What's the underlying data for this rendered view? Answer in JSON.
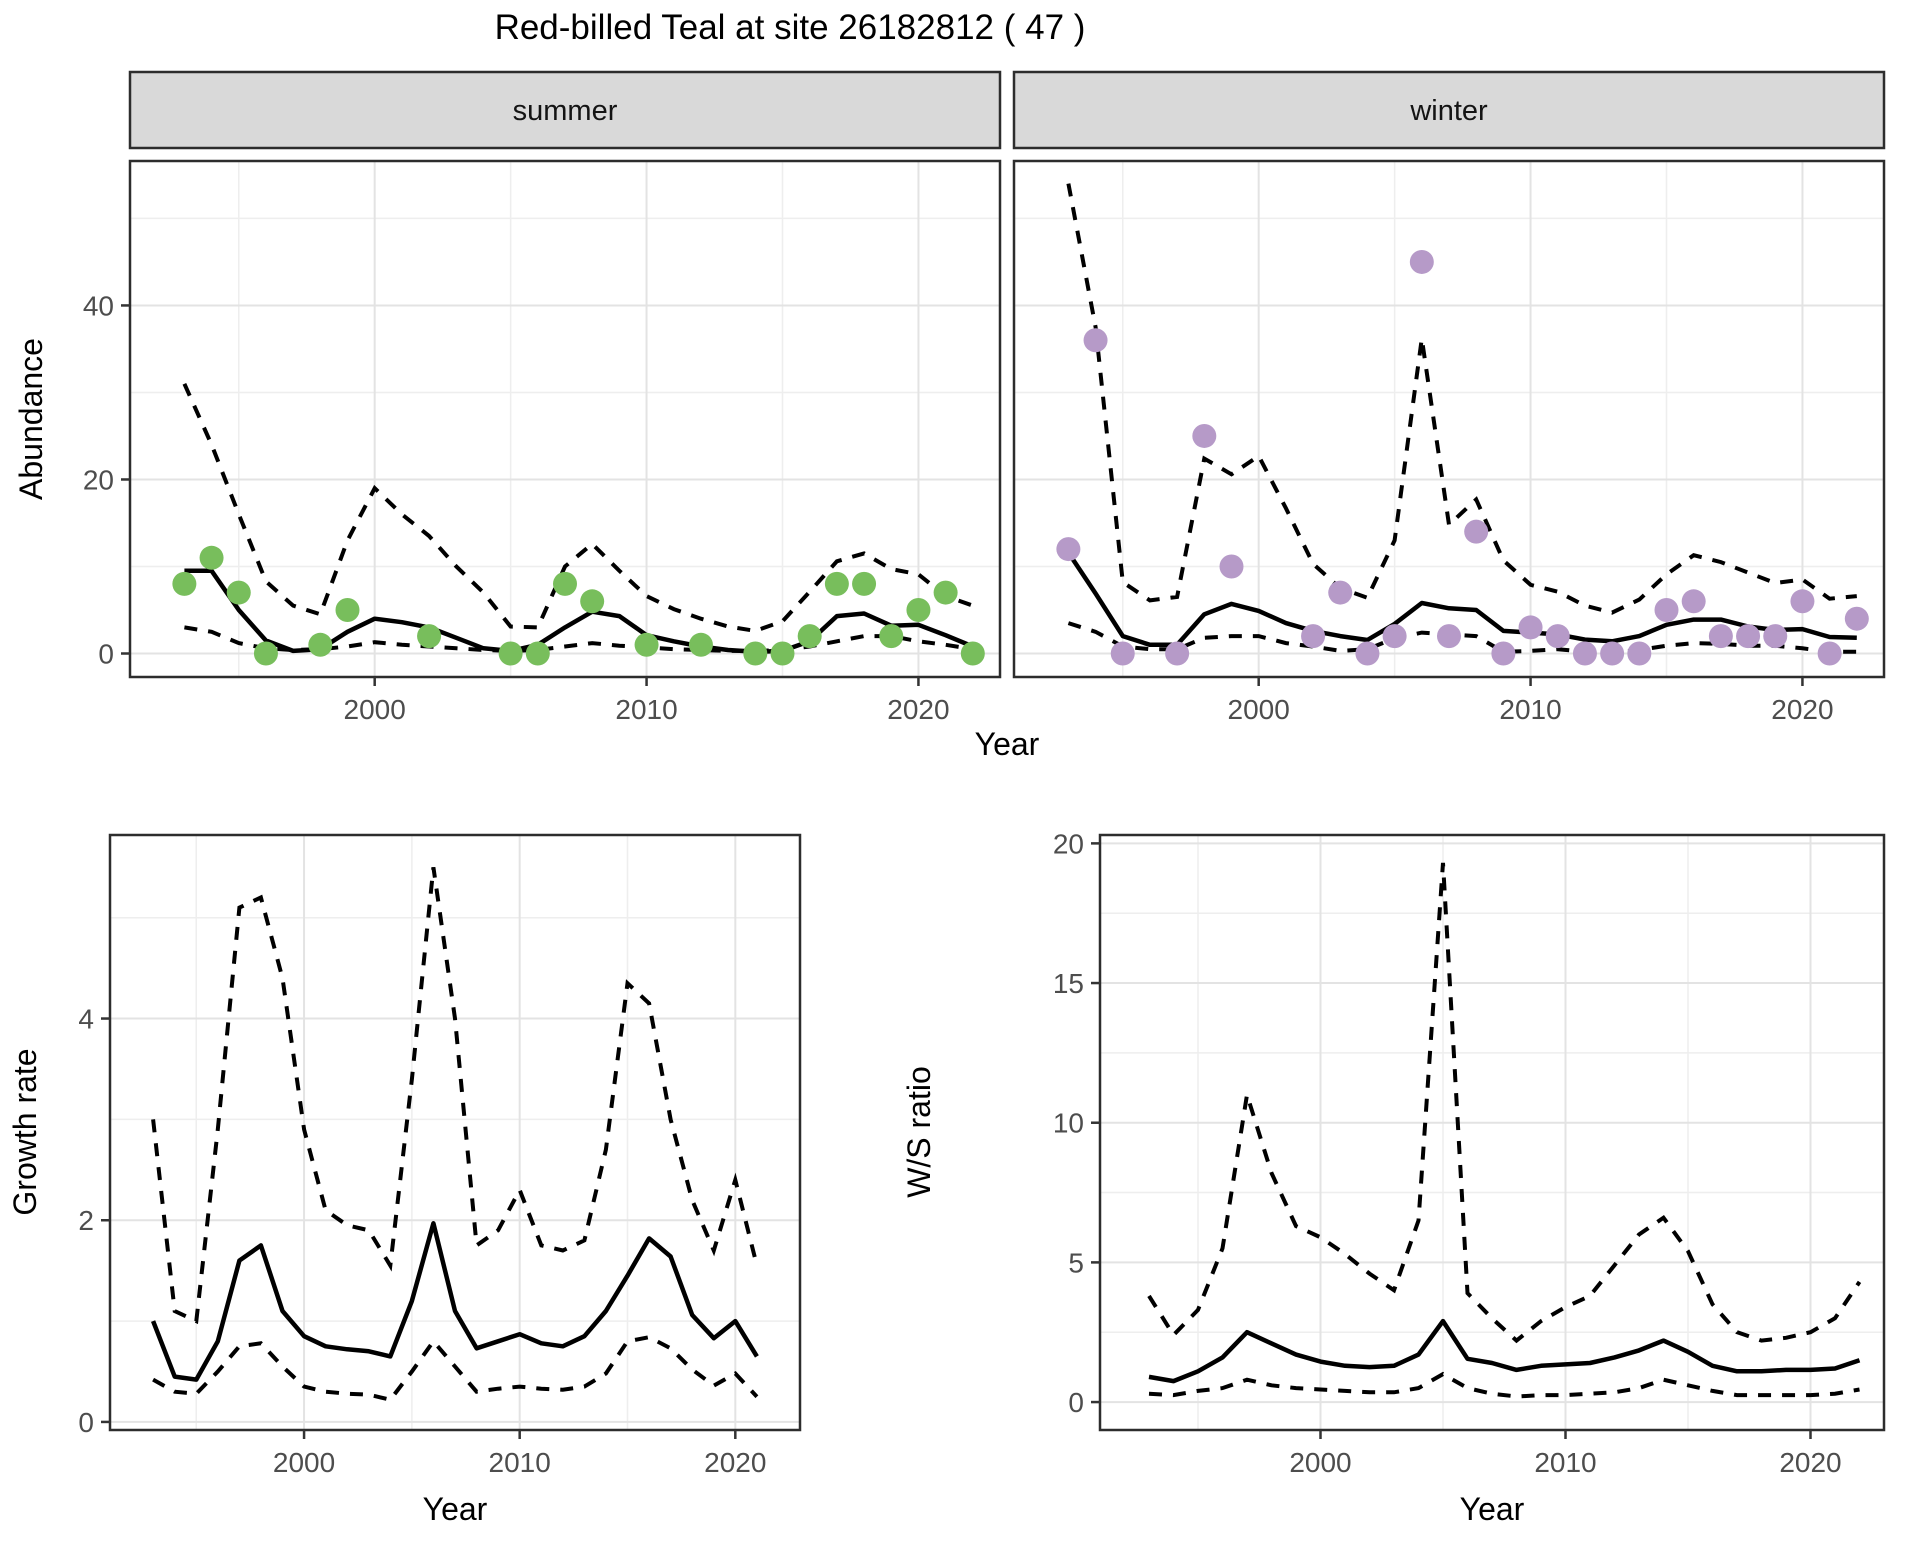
{
  "title": "Red-billed Teal at site 26182812 ( 47 )",
  "colors": {
    "summer_point": "#78BE5C",
    "winter_point": "#B69AC8",
    "line": "#000000",
    "strip_bg": "#D9D9D9",
    "panel_border": "#2D2D2D",
    "grid_major": "#E3E3E3",
    "grid_minor": "#EEEEEE",
    "tick_text": "#4D4D4D",
    "axis_text": "#000000"
  },
  "chart_data": [
    {
      "id": "abundance_summer",
      "type": "line",
      "facet": "summer",
      "ylabel": "Abundance",
      "xlabel": "Year",
      "xlim": [
        1991,
        2023
      ],
      "ylim": [
        -2.7,
        56.6
      ],
      "yticks": [
        0,
        20,
        40
      ],
      "yminor": [
        10,
        30,
        50
      ],
      "xticks": [
        2000,
        2010,
        2020
      ],
      "xminor": [
        1995,
        2005,
        2015
      ],
      "line_years": [
        1993,
        1994,
        1995,
        1996,
        1997,
        1998,
        1999,
        2000,
        2001,
        2002,
        2003,
        2004,
        2005,
        2006,
        2007,
        2008,
        2009,
        2010,
        2011,
        2012,
        2013,
        2014,
        2015,
        2016,
        2017,
        2018,
        2019,
        2020,
        2021,
        2022
      ],
      "mean": [
        9.5,
        9.5,
        5.0,
        1.5,
        0.3,
        0.5,
        2.5,
        4.0,
        3.6,
        3.0,
        1.8,
        0.6,
        0.3,
        1.0,
        3.0,
        4.8,
        4.3,
        2.1,
        1.4,
        0.8,
        0.4,
        0.2,
        0.3,
        1.4,
        4.3,
        4.6,
        3.2,
        3.3,
        2.1,
        0.8
      ],
      "upper": [
        31,
        24,
        16,
        8.3,
        5.5,
        4.5,
        13,
        19,
        16,
        13.5,
        10,
        7,
        3.1,
        3.0,
        10,
        12.6,
        9.5,
        6.6,
        5.1,
        4.0,
        3.1,
        2.6,
        3.7,
        7.1,
        10.6,
        11.5,
        9.7,
        9.1,
        6.6,
        5.5
      ],
      "lower": [
        3.0,
        2.5,
        1.2,
        0.6,
        0.4,
        0.5,
        0.8,
        1.3,
        1.0,
        0.8,
        0.6,
        0.4,
        0.3,
        0.4,
        0.8,
        1.2,
        0.9,
        0.7,
        0.5,
        0.4,
        0.3,
        0.3,
        0.4,
        0.8,
        1.4,
        2.0,
        2.0,
        1.4,
        1.0,
        0.5
      ],
      "point_years": [
        1993,
        1994,
        1995,
        1996,
        1998,
        1999,
        2002,
        2005,
        2006,
        2007,
        2008,
        2010,
        2012,
        2014,
        2015,
        2016,
        2017,
        2018,
        2019,
        2020,
        2021,
        2022
      ],
      "point_values": [
        8,
        11,
        7,
        0,
        1,
        5,
        2,
        0,
        0,
        8,
        6,
        1,
        1,
        0,
        0,
        2,
        8,
        8,
        2,
        5,
        7,
        0
      ],
      "point_color_key": "summer_point"
    },
    {
      "id": "abundance_winter",
      "type": "line",
      "facet": "winter",
      "ylabel": "",
      "xlabel": "Year",
      "xlim": [
        1991,
        2023
      ],
      "ylim": [
        -2.7,
        56.6
      ],
      "yticks": [
        0,
        20,
        40
      ],
      "yminor": [
        10,
        30,
        50
      ],
      "xticks": [
        2000,
        2010,
        2020
      ],
      "xminor": [
        1995,
        2005,
        2015
      ],
      "line_years": [
        1993,
        1994,
        1995,
        1996,
        1997,
        1998,
        1999,
        2000,
        2001,
        2002,
        2003,
        2004,
        2005,
        2006,
        2007,
        2008,
        2009,
        2010,
        2011,
        2012,
        2013,
        2014,
        2015,
        2016,
        2017,
        2018,
        2019,
        2020,
        2021,
        2022
      ],
      "mean": [
        11.6,
        6.9,
        2.0,
        1.0,
        1.0,
        4.5,
        5.7,
        4.9,
        3.5,
        2.6,
        2.0,
        1.55,
        3.4,
        5.8,
        5.2,
        5.0,
        2.6,
        2.4,
        2.2,
        1.6,
        1.4,
        2.0,
        3.3,
        3.9,
        3.9,
        3.1,
        2.7,
        2.8,
        1.9,
        1.8
      ],
      "upper": [
        54,
        37.5,
        8.2,
        6.1,
        6.5,
        22.4,
        20.6,
        22.7,
        16.7,
        10.3,
        7.5,
        6.4,
        13,
        36.2,
        14.8,
        17.7,
        10.7,
        7.9,
        7.1,
        5.5,
        4.7,
        6.2,
        9.1,
        11.3,
        10.5,
        9.3,
        8.1,
        8.5,
        6.3,
        6.6
      ],
      "lower": [
        3.5,
        2.5,
        0.8,
        0.5,
        0.5,
        1.8,
        2.0,
        2.0,
        1.2,
        0.8,
        0.3,
        0.5,
        1.75,
        2.4,
        2.2,
        2.0,
        0.2,
        0.3,
        0.5,
        0.2,
        0.1,
        0.4,
        0.9,
        1.2,
        1.1,
        0.9,
        0.9,
        0.6,
        0.2,
        0.2
      ],
      "point_years": [
        1993,
        1994,
        1995,
        1997,
        1998,
        1999,
        2002,
        2003,
        2004,
        2005,
        2006,
        2007,
        2008,
        2009,
        2010,
        2011,
        2012,
        2013,
        2014,
        2015,
        2016,
        2017,
        2018,
        2019,
        2020,
        2021,
        2022
      ],
      "point_values": [
        12,
        36,
        0,
        0,
        25,
        10,
        2,
        7,
        0,
        2,
        45,
        2,
        14,
        0,
        3,
        2,
        0,
        0,
        0,
        5,
        6,
        2,
        2,
        2,
        6,
        0,
        4
      ],
      "point_color_key": "winter_point"
    },
    {
      "id": "growth_rate",
      "type": "line",
      "facet": null,
      "ylabel": "Growth rate",
      "xlabel": "Year",
      "xlim": [
        1991,
        2023
      ],
      "ylim": [
        -0.08,
        5.82
      ],
      "yticks": [
        0,
        2,
        4
      ],
      "yminor": [
        1,
        3,
        5
      ],
      "xticks": [
        2000,
        2010,
        2020
      ],
      "xminor": [
        1995,
        2005,
        2015
      ],
      "line_years": [
        1993,
        1994,
        1995,
        1996,
        1997,
        1998,
        1999,
        2000,
        2001,
        2002,
        2003,
        2004,
        2005,
        2006,
        2007,
        2008,
        2009,
        2010,
        2011,
        2012,
        2013,
        2014,
        2015,
        2016,
        2017,
        2018,
        2019,
        2020,
        2021
      ],
      "mean": [
        1.0,
        0.45,
        0.42,
        0.8,
        1.6,
        1.75,
        1.1,
        0.85,
        0.75,
        0.72,
        0.7,
        0.65,
        1.2,
        1.97,
        1.1,
        0.73,
        0.8,
        0.87,
        0.78,
        0.75,
        0.85,
        1.1,
        1.45,
        1.82,
        1.64,
        1.06,
        0.83,
        1.0,
        0.65
      ],
      "upper": [
        3.0,
        1.1,
        1.0,
        2.9,
        5.1,
        5.2,
        4.4,
        2.9,
        2.1,
        1.95,
        1.9,
        1.55,
        3.4,
        5.5,
        4.0,
        1.75,
        1.9,
        2.3,
        1.75,
        1.7,
        1.8,
        2.7,
        4.35,
        4.15,
        3.0,
        2.2,
        1.7,
        2.4,
        1.55
      ],
      "lower": [
        0.42,
        0.3,
        0.28,
        0.5,
        0.75,
        0.78,
        0.55,
        0.35,
        0.3,
        0.28,
        0.27,
        0.22,
        0.5,
        0.8,
        0.55,
        0.3,
        0.33,
        0.35,
        0.33,
        0.32,
        0.35,
        0.48,
        0.8,
        0.84,
        0.73,
        0.52,
        0.36,
        0.48,
        0.25
      ],
      "point_years": [],
      "point_values": [],
      "point_color_key": null
    },
    {
      "id": "ws_ratio",
      "type": "line",
      "facet": null,
      "ylabel": "W/S ratio",
      "xlabel": "Year",
      "xlim": [
        1991,
        2023
      ],
      "ylim": [
        -1.0,
        20.3
      ],
      "yticks": [
        0,
        5,
        10,
        15,
        20
      ],
      "yminor": [
        2.5,
        7.5,
        12.5,
        17.5
      ],
      "xticks": [
        2000,
        2010,
        2020
      ],
      "xminor": [
        1995,
        2005,
        2015
      ],
      "line_years": [
        1993,
        1994,
        1995,
        1996,
        1997,
        1998,
        1999,
        2000,
        2001,
        2002,
        2003,
        2004,
        2005,
        2006,
        2007,
        2008,
        2009,
        2010,
        2011,
        2012,
        2013,
        2014,
        2015,
        2016,
        2017,
        2018,
        2019,
        2020,
        2021,
        2022
      ],
      "mean": [
        0.9,
        0.75,
        1.1,
        1.6,
        2.5,
        2.1,
        1.7,
        1.45,
        1.3,
        1.25,
        1.3,
        1.7,
        2.9,
        1.55,
        1.4,
        1.15,
        1.3,
        1.35,
        1.4,
        1.6,
        1.85,
        2.2,
        1.8,
        1.3,
        1.1,
        1.1,
        1.15,
        1.15,
        1.2,
        1.5
      ],
      "upper": [
        3.8,
        2.4,
        3.3,
        5.5,
        11.0,
        8.2,
        6.3,
        5.9,
        5.3,
        4.6,
        4.0,
        6.5,
        19.3,
        3.9,
        3.0,
        2.2,
        2.9,
        3.4,
        3.8,
        4.9,
        6.0,
        6.6,
        5.4,
        3.5,
        2.5,
        2.2,
        2.3,
        2.5,
        3.0,
        4.3
      ],
      "lower": [
        0.3,
        0.25,
        0.4,
        0.5,
        0.8,
        0.6,
        0.5,
        0.45,
        0.4,
        0.35,
        0.35,
        0.5,
        1.0,
        0.5,
        0.3,
        0.2,
        0.25,
        0.25,
        0.3,
        0.35,
        0.5,
        0.8,
        0.6,
        0.4,
        0.25,
        0.25,
        0.25,
        0.25,
        0.3,
        0.45
      ]
    }
  ]
}
